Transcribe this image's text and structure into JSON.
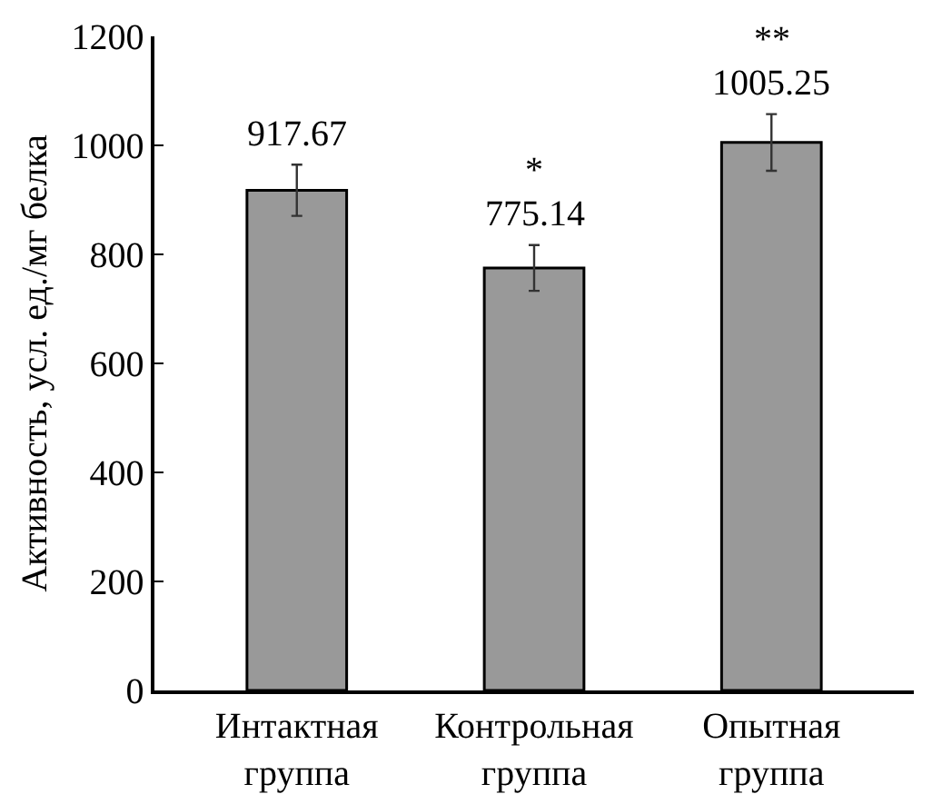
{
  "chart_data": {
    "type": "bar",
    "ylabel": "Активность, усл. ед./мг белка",
    "categories": [
      "Интактная\nгруппа",
      "Контрольная\nгруппа",
      "Опытная\nгруппа"
    ],
    "values": [
      917.67,
      775.14,
      1005.25
    ],
    "color": "#999999",
    "errors": [
      47,
      42,
      52
    ],
    "data_labels": true,
    "annotations": [
      {
        "text": "*",
        "x": "Контрольная\nгруппа",
        "y": 817
      },
      {
        "text": "**",
        "x": "Опытная\nгруппа",
        "y": 1057
      }
    ],
    "ylim": [
      0,
      1200
    ],
    "yticks": [
      0,
      200,
      400,
      600,
      800,
      1000,
      1200
    ],
    "grid": false,
    "legend": false
  }
}
